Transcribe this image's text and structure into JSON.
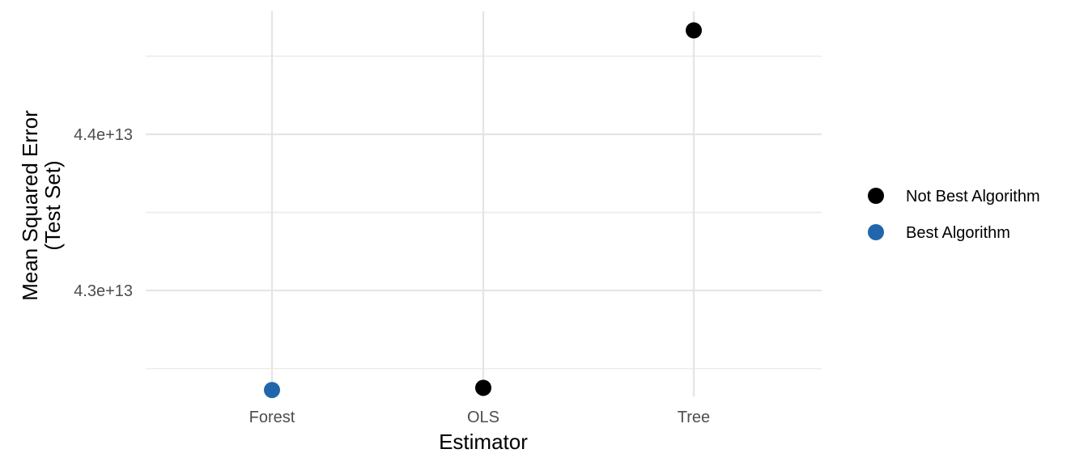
{
  "chart_data": {
    "type": "scatter",
    "title": "",
    "xlabel": "Estimator",
    "ylabel_lines": [
      "Mean Squared Error",
      "(Test Set)"
    ],
    "categories": [
      "Forest",
      "OLS",
      "Tree"
    ],
    "yticks": [
      {
        "value": 43000000000000.0,
        "label": "4.3e+13"
      },
      {
        "value": 44000000000000.0,
        "label": "4.4e+13"
      }
    ],
    "yminor": [
      42500000000000.0,
      43500000000000.0,
      44500000000000.0
    ],
    "ylim": [
      42322000000000.0,
      44787000000000.0
    ],
    "points": [
      {
        "category": "Forest",
        "value": 42363000000000.0,
        "group": "Best Algorithm"
      },
      {
        "category": "OLS",
        "value": 42377000000000.0,
        "group": "Not Best Algorithm"
      },
      {
        "category": "Tree",
        "value": 44665000000000.0,
        "group": "Not Best Algorithm"
      }
    ],
    "legend": [
      {
        "label": "Not Best Algorithm",
        "color": "#000000"
      },
      {
        "label": "Best Algorithm",
        "color": "#2166ac"
      }
    ],
    "legend_position": "right",
    "grid": true
  }
}
